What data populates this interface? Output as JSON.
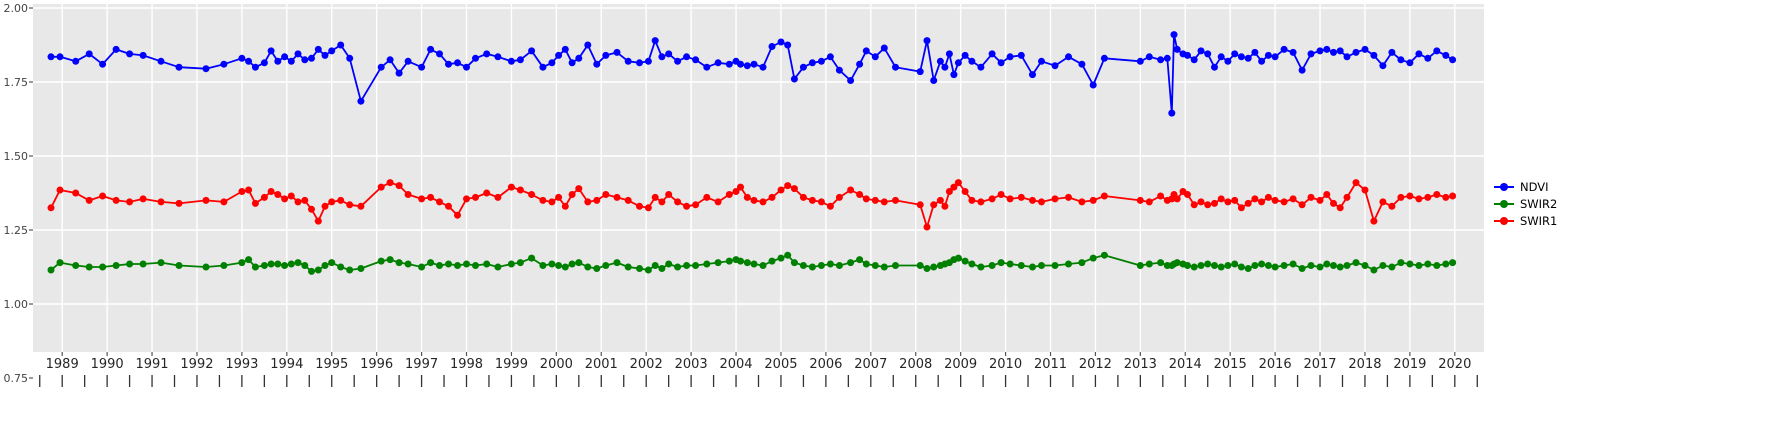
{
  "chart_data": {
    "type": "line",
    "title": "",
    "xlabel": "",
    "ylabel": "",
    "grid": "white-major-on-gray-panel",
    "panel_color": "#E8E8E8",
    "grid_color": "#FFFFFF",
    "axis_text_color": "#444444",
    "tick_mark_color": "#333333",
    "legend_position": "right",
    "xlim": [
      1988.35,
      2020.65
    ],
    "ylim": [
      0.84,
      2.01
    ],
    "x_ticks": [
      1989,
      1990,
      1991,
      1992,
      1993,
      1994,
      1995,
      1996,
      1997,
      1998,
      1999,
      2000,
      2001,
      2002,
      2003,
      2004,
      2005,
      2006,
      2007,
      2008,
      2009,
      2010,
      2011,
      2012,
      2013,
      2014,
      2015,
      2016,
      2017,
      2018,
      2019,
      2020
    ],
    "y_ticks": [
      2.0,
      1.75,
      1.5,
      1.25,
      1.0,
      0.75
    ],
    "y_tick_labels": [
      "2.00",
      "1.75",
      "1.50",
      "1.25",
      "1.00",
      "0.75"
    ],
    "x": [
      1988.75,
      1988.95,
      1989.3,
      1989.6,
      1989.9,
      1990.2,
      1990.5,
      1990.8,
      1991.2,
      1991.6,
      1992.2,
      1992.6,
      1993.0,
      1993.15,
      1993.3,
      1993.5,
      1993.65,
      1993.8,
      1993.95,
      1994.1,
      1994.25,
      1994.4,
      1994.55,
      1994.7,
      1994.85,
      1995.0,
      1995.2,
      1995.4,
      1995.65,
      1996.1,
      1996.3,
      1996.5,
      1996.7,
      1997.0,
      1997.2,
      1997.4,
      1997.6,
      1997.8,
      1998.0,
      1998.2,
      1998.45,
      1998.7,
      1999.0,
      1999.2,
      1999.45,
      1999.7,
      1999.9,
      2000.05,
      2000.2,
      2000.35,
      2000.5,
      2000.7,
      2000.9,
      2001.1,
      2001.35,
      2001.6,
      2001.85,
      2002.05,
      2002.2,
      2002.35,
      2002.5,
      2002.7,
      2002.9,
      2003.1,
      2003.35,
      2003.6,
      2003.85,
      2004.0,
      2004.1,
      2004.25,
      2004.4,
      2004.6,
      2004.8,
      2005.0,
      2005.15,
      2005.3,
      2005.5,
      2005.7,
      2005.9,
      2006.1,
      2006.3,
      2006.55,
      2006.75,
      2006.9,
      2007.1,
      2007.3,
      2007.55,
      2008.1,
      2008.25,
      2008.4,
      2008.55,
      2008.65,
      2008.75,
      2008.85,
      2008.95,
      2009.1,
      2009.25,
      2009.45,
      2009.7,
      2009.9,
      2010.1,
      2010.35,
      2010.6,
      2010.8,
      2011.1,
      2011.4,
      2011.7,
      2011.95,
      2012.2,
      2013.0,
      2013.2,
      2013.45,
      2013.6,
      2013.7,
      2013.75,
      2013.82,
      2013.95,
      2014.05,
      2014.2,
      2014.35,
      2014.5,
      2014.65,
      2014.8,
      2014.95,
      2015.1,
      2015.25,
      2015.4,
      2015.55,
      2015.7,
      2015.85,
      2016.0,
      2016.2,
      2016.4,
      2016.6,
      2016.8,
      2017.0,
      2017.15,
      2017.3,
      2017.45,
      2017.6,
      2017.8,
      2018.0,
      2018.2,
      2018.4,
      2018.6,
      2018.8,
      2019.0,
      2019.2,
      2019.4,
      2019.6,
      2019.8,
      2019.95
    ],
    "series": [
      {
        "name": "NDVI",
        "color": "#0000FF",
        "marker": "circle",
        "values": [
          1.835,
          1.835,
          1.82,
          1.845,
          1.81,
          1.86,
          1.845,
          1.84,
          1.82,
          1.8,
          1.795,
          1.81,
          1.83,
          1.82,
          1.8,
          1.815,
          1.855,
          1.82,
          1.835,
          1.82,
          1.845,
          1.825,
          1.83,
          1.86,
          1.84,
          1.855,
          1.875,
          1.83,
          1.685,
          1.8,
          1.825,
          1.78,
          1.82,
          1.8,
          1.86,
          1.845,
          1.81,
          1.815,
          1.8,
          1.83,
          1.845,
          1.835,
          1.82,
          1.825,
          1.855,
          1.8,
          1.815,
          1.84,
          1.86,
          1.815,
          1.83,
          1.875,
          1.81,
          1.84,
          1.85,
          1.82,
          1.815,
          1.82,
          1.89,
          1.835,
          1.845,
          1.82,
          1.835,
          1.825,
          1.8,
          1.815,
          1.81,
          1.82,
          1.81,
          1.805,
          1.81,
          1.8,
          1.87,
          1.885,
          1.875,
          1.76,
          1.8,
          1.815,
          1.82,
          1.835,
          1.79,
          1.755,
          1.81,
          1.855,
          1.835,
          1.865,
          1.8,
          1.785,
          1.89,
          1.755,
          1.82,
          1.8,
          1.845,
          1.775,
          1.815,
          1.84,
          1.82,
          1.8,
          1.845,
          1.815,
          1.835,
          1.84,
          1.775,
          1.82,
          1.805,
          1.835,
          1.81,
          1.74,
          1.83,
          1.82,
          1.835,
          1.825,
          1.83,
          1.645,
          1.91,
          1.86,
          1.845,
          1.84,
          1.825,
          1.855,
          1.845,
          1.8,
          1.835,
          1.82,
          1.845,
          1.835,
          1.83,
          1.85,
          1.82,
          1.84,
          1.835,
          1.86,
          1.85,
          1.79,
          1.845,
          1.855,
          1.86,
          1.85,
          1.855,
          1.835,
          1.85,
          1.86,
          1.84,
          1.805,
          1.85,
          1.825,
          1.815,
          1.845,
          1.83,
          1.855,
          1.84,
          1.825
        ]
      },
      {
        "name": "SWIR1",
        "color": "#FF0000",
        "marker": "circle",
        "values": [
          1.325,
          1.385,
          1.375,
          1.35,
          1.365,
          1.35,
          1.345,
          1.355,
          1.345,
          1.34,
          1.35,
          1.345,
          1.38,
          1.385,
          1.34,
          1.36,
          1.38,
          1.37,
          1.355,
          1.365,
          1.345,
          1.35,
          1.32,
          1.28,
          1.33,
          1.345,
          1.35,
          1.335,
          1.33,
          1.395,
          1.41,
          1.4,
          1.37,
          1.355,
          1.36,
          1.345,
          1.33,
          1.3,
          1.355,
          1.36,
          1.375,
          1.36,
          1.395,
          1.385,
          1.37,
          1.35,
          1.345,
          1.36,
          1.33,
          1.37,
          1.39,
          1.345,
          1.35,
          1.37,
          1.36,
          1.35,
          1.33,
          1.325,
          1.36,
          1.345,
          1.37,
          1.345,
          1.33,
          1.335,
          1.36,
          1.345,
          1.37,
          1.38,
          1.395,
          1.36,
          1.35,
          1.345,
          1.36,
          1.385,
          1.4,
          1.39,
          1.36,
          1.35,
          1.345,
          1.33,
          1.36,
          1.385,
          1.37,
          1.355,
          1.35,
          1.345,
          1.35,
          1.335,
          1.26,
          1.335,
          1.35,
          1.33,
          1.38,
          1.395,
          1.41,
          1.38,
          1.35,
          1.345,
          1.355,
          1.37,
          1.355,
          1.36,
          1.35,
          1.345,
          1.355,
          1.36,
          1.345,
          1.35,
          1.365,
          1.35,
          1.345,
          1.365,
          1.35,
          1.355,
          1.37,
          1.355,
          1.38,
          1.37,
          1.335,
          1.345,
          1.335,
          1.34,
          1.355,
          1.345,
          1.35,
          1.325,
          1.34,
          1.355,
          1.345,
          1.36,
          1.35,
          1.345,
          1.355,
          1.335,
          1.36,
          1.35,
          1.37,
          1.34,
          1.325,
          1.36,
          1.41,
          1.385,
          1.28,
          1.345,
          1.33,
          1.36,
          1.365,
          1.355,
          1.36,
          1.37,
          1.36,
          1.365
        ]
      },
      {
        "name": "SWIR2",
        "color": "#008000",
        "marker": "circle",
        "values": [
          1.115,
          1.14,
          1.13,
          1.125,
          1.125,
          1.13,
          1.135,
          1.135,
          1.14,
          1.13,
          1.125,
          1.13,
          1.14,
          1.15,
          1.125,
          1.13,
          1.135,
          1.135,
          1.13,
          1.135,
          1.14,
          1.13,
          1.11,
          1.115,
          1.13,
          1.14,
          1.125,
          1.115,
          1.12,
          1.145,
          1.15,
          1.14,
          1.135,
          1.125,
          1.14,
          1.13,
          1.135,
          1.13,
          1.135,
          1.13,
          1.135,
          1.125,
          1.135,
          1.14,
          1.155,
          1.13,
          1.135,
          1.13,
          1.125,
          1.135,
          1.14,
          1.125,
          1.12,
          1.13,
          1.14,
          1.125,
          1.12,
          1.115,
          1.13,
          1.12,
          1.135,
          1.125,
          1.13,
          1.13,
          1.135,
          1.14,
          1.145,
          1.15,
          1.145,
          1.14,
          1.135,
          1.13,
          1.145,
          1.155,
          1.165,
          1.14,
          1.13,
          1.125,
          1.13,
          1.135,
          1.13,
          1.14,
          1.15,
          1.135,
          1.13,
          1.125,
          1.13,
          1.13,
          1.12,
          1.125,
          1.13,
          1.135,
          1.14,
          1.15,
          1.155,
          1.145,
          1.135,
          1.125,
          1.13,
          1.14,
          1.135,
          1.13,
          1.125,
          1.13,
          1.13,
          1.135,
          1.14,
          1.155,
          1.165,
          1.13,
          1.135,
          1.14,
          1.13,
          1.13,
          1.135,
          1.14,
          1.135,
          1.13,
          1.125,
          1.13,
          1.135,
          1.13,
          1.125,
          1.13,
          1.135,
          1.125,
          1.12,
          1.13,
          1.135,
          1.13,
          1.125,
          1.13,
          1.135,
          1.12,
          1.13,
          1.125,
          1.135,
          1.13,
          1.125,
          1.13,
          1.14,
          1.13,
          1.115,
          1.13,
          1.125,
          1.14,
          1.135,
          1.13,
          1.135,
          1.13,
          1.135,
          1.14
        ]
      }
    ],
    "legend": [
      {
        "label": "NDVI",
        "color": "#0000FF"
      },
      {
        "label": "SWIR2",
        "color": "#008000"
      },
      {
        "label": "SWIR1",
        "color": "#FF0000"
      }
    ]
  }
}
